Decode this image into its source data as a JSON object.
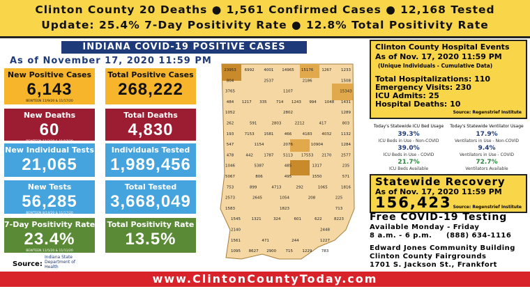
{
  "header": {
    "line1": "Clinton County 20 Deaths ● 1,561 Confirmed Cases ● 12,168 Tested",
    "line2": "Update: 25.4% 7-Day Positivity Rate ● 12.8% Total Positivity Rate"
  },
  "banner": {
    "title": "INDIANA COVID-19 POSITIVE CASES",
    "as_of": "As of November 17, 2020 11:59 PM"
  },
  "tiles": [
    {
      "label": "New Positive Cases",
      "value": "6,143",
      "note": "BEWTEEN 11/9/20 & 11/17/20"
    },
    {
      "label": "Total Positive Cases",
      "value": "268,222"
    },
    {
      "label": "New Deaths",
      "value": "60",
      "note": "BEWTEEN 11/3/20 & 11/17/20"
    },
    {
      "label": "Total Deaths",
      "value": "4,830"
    },
    {
      "label": "New Individual Tests",
      "value": "21,065"
    },
    {
      "label": "Individuals Tested",
      "value": "1,989,456"
    },
    {
      "label": "New Tests",
      "value": "56,285",
      "note": "BEWTEEN 8/14/20 & 11/17/20"
    },
    {
      "label": "Total Tested",
      "value": "3,668,049"
    },
    {
      "label": "7-Day Positivity Rate",
      "value": "23.4%",
      "note": "BEWTEEN 11/5/20 & 11/11/20"
    },
    {
      "label": "Total Positivity Rate",
      "value": "13.5%"
    }
  ],
  "source": {
    "label": "Source:",
    "logo": "Indiana State Department of Health"
  },
  "map": {
    "rows": [
      [
        "23953",
        "6992",
        "4001",
        "14965",
        "15176",
        "1267",
        "1233"
      ],
      [
        "804",
        "2537",
        "2186",
        "1508"
      ],
      [
        "3765",
        "1107",
        "15343"
      ],
      [
        "484",
        "1217",
        "335",
        "714",
        "1243",
        "994",
        "1048",
        "1431"
      ],
      [
        "1052",
        "2802",
        "1289"
      ],
      [
        "262",
        "591",
        "2803",
        "2212",
        "417",
        "803"
      ],
      [
        "193",
        "7153",
        "1581",
        "466",
        "4183",
        "4032",
        "1132"
      ],
      [
        "547",
        "1154",
        "2076",
        "10904",
        "1284"
      ],
      [
        "478",
        "442",
        "1787",
        "5113",
        "17553",
        "2170",
        "2577"
      ],
      [
        "1046",
        "5387",
        "485",
        "1317",
        "235"
      ],
      [
        "5067",
        "806",
        "495",
        "1550",
        "571"
      ],
      [
        "753",
        "899",
        "4713",
        "292",
        "1065",
        "1816"
      ],
      [
        "2573",
        "2645",
        "1054",
        "208",
        "225"
      ],
      [
        "1583",
        "1823",
        "713"
      ],
      [
        "1545",
        "1321",
        "324",
        "601",
        "622",
        "8223"
      ],
      [
        "2140",
        "2448"
      ],
      [
        "1561",
        "471",
        "244",
        "1227"
      ],
      [
        "1095",
        "8627",
        "2900",
        "715",
        "1229",
        "783"
      ]
    ]
  },
  "hospital": {
    "title": "Clinton County Hospital Events",
    "as_of": "As of Nov. 17, 2020 11:59 PM",
    "note": "(Unique Individuals - Cumulative Data)",
    "lines": [
      "Total Hospitalizations: 110",
      "Emergency Visits: 230",
      "ICU Admits: 25",
      "Hospital Deaths: 10"
    ],
    "source": "Source: Regenstrief Institute"
  },
  "icu": {
    "title": "Today's Statewide ICU Bed Usage",
    "items": [
      {
        "value": "39.3%",
        "label": "ICU Beds in Use - Non-COVID"
      },
      {
        "value": "39.0%",
        "label": "ICU Beds in Use - COVID"
      },
      {
        "value": "21.7%",
        "label": "ICU Beds Available"
      }
    ]
  },
  "ventilator": {
    "title": "Today's Statewide Ventilator Usage",
    "items": [
      {
        "value": "17.9%",
        "label": "Ventilators in Use - Non-COVID"
      },
      {
        "value": "9.4%",
        "label": "Ventilators in Use - COVID"
      },
      {
        "value": "72.7%",
        "label": "Ventilators Available"
      }
    ]
  },
  "recovery": {
    "title": "Statewide Recovery",
    "as_of": "As of Nov. 17, 2020 11:59 PM",
    "value": "156,423",
    "source": "Source: Regenstrief Institute"
  },
  "testing": {
    "title": "Free COVID-19 Testing",
    "days": "Available Monday - Friday",
    "hours": "8 a.m. - 6 p.m.",
    "phone": "(888) 634-1116",
    "place": "Edward Jones Community Building",
    "venue": "Clinton County Fairgrounds",
    "address": "1701 S. Jackson St., Frankfort"
  },
  "footer": {
    "url": "www.ClintonCountyToday.com"
  }
}
